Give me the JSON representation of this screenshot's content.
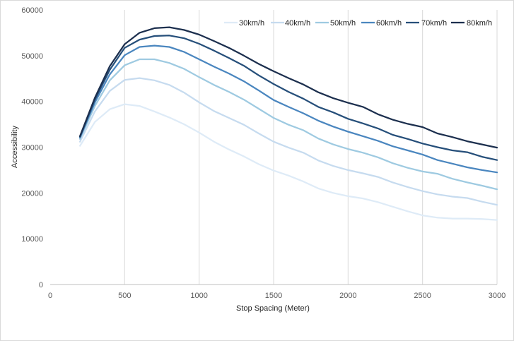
{
  "chart_data": {
    "type": "line",
    "title": "",
    "xlabel": "Stop Spacing (Meter)",
    "ylabel": "Accessibility",
    "xlim": [
      0,
      3000
    ],
    "ylim": [
      0,
      60000
    ],
    "x_ticks": [
      0,
      500,
      1000,
      1500,
      2000,
      2500,
      3000
    ],
    "y_ticks": [
      0,
      10000,
      20000,
      30000,
      40000,
      50000,
      60000
    ],
    "grid": "vertical",
    "legend_position": "top-right",
    "x": [
      200,
      300,
      400,
      500,
      600,
      700,
      800,
      900,
      1000,
      1100,
      1200,
      1300,
      1400,
      1500,
      1600,
      1700,
      1800,
      1900,
      2000,
      2100,
      2200,
      2300,
      2400,
      2500,
      2600,
      2700,
      2800,
      2900,
      3000
    ],
    "series": [
      {
        "name": "30km/h",
        "color": "#deebf7",
        "values": [
          30300,
          35500,
          38300,
          39400,
          39000,
          37800,
          36500,
          35000,
          33200,
          31200,
          29500,
          28000,
          26300,
          24900,
          23800,
          22500,
          21000,
          20000,
          19300,
          18800,
          18000,
          17000,
          16000,
          15100,
          14600,
          14400,
          14400,
          14300,
          14100
        ]
      },
      {
        "name": "40km/h",
        "color": "#c6dbef",
        "values": [
          31200,
          37800,
          42300,
          44700,
          45100,
          44600,
          43600,
          41900,
          39800,
          37900,
          36400,
          34900,
          33000,
          31200,
          29900,
          28800,
          27100,
          25900,
          25000,
          24300,
          23500,
          22300,
          21300,
          20400,
          19700,
          19200,
          18900,
          18100,
          17400
        ]
      },
      {
        "name": "50km/h",
        "color": "#9ecae1",
        "values": [
          31800,
          39000,
          44600,
          47900,
          49200,
          49200,
          48400,
          47100,
          45300,
          43600,
          42100,
          40400,
          38400,
          36400,
          34900,
          33700,
          31900,
          30600,
          29600,
          28800,
          27800,
          26500,
          25500,
          24700,
          24200,
          23100,
          22300,
          21600,
          20800
        ]
      },
      {
        "name": "60km/h",
        "color": "#4a86bf",
        "values": [
          32100,
          39800,
          45900,
          50100,
          51900,
          52200,
          51900,
          50800,
          49200,
          47600,
          46100,
          44400,
          42400,
          40300,
          38800,
          37400,
          35800,
          34500,
          33400,
          32400,
          31400,
          30200,
          29300,
          28400,
          27200,
          26400,
          25600,
          25000,
          24500
        ]
      },
      {
        "name": "70km/h",
        "color": "#264f7a",
        "values": [
          32300,
          40400,
          46900,
          51700,
          53500,
          54300,
          54400,
          53800,
          52600,
          51100,
          49500,
          47800,
          45700,
          43800,
          42100,
          40600,
          38800,
          37600,
          36200,
          35200,
          34100,
          32700,
          31800,
          30800,
          30000,
          29300,
          28900,
          27900,
          27200
        ]
      },
      {
        "name": "80km/h",
        "color": "#1c2f4e",
        "values": [
          32400,
          40800,
          47700,
          52500,
          55000,
          56000,
          56200,
          55600,
          54600,
          53200,
          51700,
          50000,
          48200,
          46600,
          45100,
          43700,
          42000,
          40700,
          39700,
          38800,
          37200,
          36000,
          35100,
          34400,
          33000,
          32200,
          31300,
          30600,
          29900
        ]
      }
    ]
  }
}
